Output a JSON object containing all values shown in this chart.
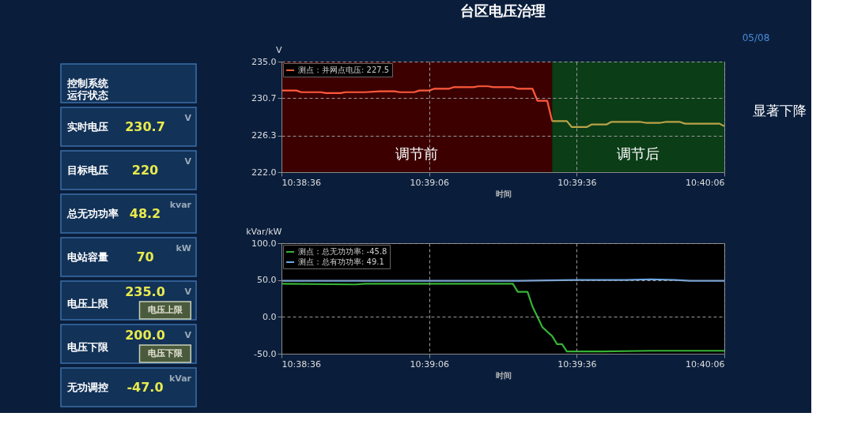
{
  "chart_data": [
    {
      "type": "other",
      "categories": [
        "控制系统运行状态",
        "实时电压",
        "目标电压",
        "总无功功率",
        "电站容量",
        "电压上限",
        "电压下限",
        "无功调控"
      ],
      "value_labels": [
        null,
        "230.7",
        "220",
        "48.2",
        "70",
        "235.0",
        "200.0",
        "-47.0"
      ],
      "annotations": [
        "V",
        "V",
        "kvar",
        "kW",
        "V",
        "V",
        "kVar",
        "电压上限",
        "电压下限"
      ]
    },
    {
      "type": "line",
      "title": "台区电压治理",
      "ylabel": "V",
      "xlabel": "时间",
      "annotations": [
        "显著下降",
        "05/08"
      ],
      "xlim": [
        10.64333,
        10.66833
      ],
      "xticks": [
        {
          "value": 10.64333,
          "label": "10:38:36"
        },
        {
          "value": 10.65167,
          "label": "10:39:06"
        },
        {
          "value": 10.66,
          "label": "10:39:36"
        },
        {
          "value": 10.66833,
          "label": "10:40:06"
        }
      ],
      "ylim": [
        222,
        235
      ],
      "yticks": [
        {
          "value": 222,
          "label": "222.0"
        },
        226.3,
        230.7,
        {
          "value": 235,
          "label": "235.0"
        }
      ],
      "grid": true,
      "legend": "top left",
      "bands": [
        {
          "axis": "x",
          "from": 10.64333,
          "to": 10.65861,
          "label": "调节前",
          "color": "#3c0000"
        },
        {
          "axis": "x",
          "from": 10.65861,
          "to": 10.66833,
          "label": "调节后",
          "color": "#0b3d17"
        }
      ],
      "series": [
        {
          "name": "测点：并网点电压: 227.5",
          "color": "#ff5a3c",
          "x": [
            10.64333,
            10.64417,
            10.64444,
            10.64556,
            10.64583,
            10.64667,
            10.64694,
            10.64778,
            10.64806,
            10.64889,
            10.64972,
            10.65,
            10.65083,
            10.65111,
            10.65167,
            10.65194,
            10.65278,
            10.65306,
            10.65417,
            10.65444,
            10.655,
            10.65528,
            10.65639,
            10.65667,
            10.6575,
            10.65778,
            10.65833,
            10.65861
          ],
          "values": [
            231.6,
            231.6,
            231.4,
            231.4,
            231.3,
            231.3,
            231.4,
            231.4,
            231.4,
            231.5,
            231.5,
            231.4,
            231.4,
            231.6,
            231.6,
            231.8,
            231.8,
            232.0,
            232.0,
            232.1,
            232.1,
            232.0,
            232.0,
            231.8,
            231.8,
            230.4,
            230.4,
            228.0
          ]
        },
        {
          "color": "#b9a247",
          "x": [
            10.65861,
            10.65944,
            10.65972,
            10.66056,
            10.66083,
            10.66167,
            10.66194,
            10.66361,
            10.66389,
            10.66472,
            10.665,
            10.66583,
            10.66611,
            10.66806,
            10.66833
          ],
          "values": [
            228.0,
            228.0,
            227.3,
            227.3,
            227.6,
            227.6,
            227.9,
            227.9,
            227.8,
            227.8,
            227.9,
            227.9,
            227.7,
            227.7,
            227.4
          ]
        }
      ]
    },
    {
      "type": "line",
      "ylabel": "kVar/kW",
      "xlabel": "时间",
      "xlim": [
        10.64333,
        10.66833
      ],
      "xticks": [
        {
          "value": 10.64333,
          "label": "10:38:36"
        },
        {
          "value": 10.65167,
          "label": "10:39:06"
        },
        {
          "value": 10.66,
          "label": "10:39:36"
        },
        {
          "value": 10.66833,
          "label": "10:40:06"
        }
      ],
      "ylim": [
        -50,
        100
      ],
      "yticks": [
        {
          "value": -50,
          "label": "-50.0"
        },
        {
          "value": 0,
          "label": "0.0"
        },
        {
          "value": 50,
          "label": "50.0"
        },
        {
          "value": 100,
          "label": "100.0"
        }
      ],
      "grid": true,
      "legend": "top left",
      "series": [
        {
          "name": "测点：总无功功率: -45.8",
          "color": "#36b336",
          "x": [
            10.64333,
            10.6475,
            10.64806,
            10.65611,
            10.65639,
            10.65667,
            10.65722,
            10.6575,
            10.65778,
            10.65806,
            10.65833,
            10.65861,
            10.65889,
            10.65917,
            10.65944,
            10.66139,
            10.66417,
            10.66694,
            10.66833
          ],
          "values": [
            45,
            44,
            45,
            45,
            45,
            34,
            34,
            14,
            0,
            -14,
            -20,
            -26,
            -37,
            -37,
            -47,
            -47,
            -46,
            -46,
            -46
          ]
        },
        {
          "name": "测点：总有功功率: 49.1",
          "color": "#6fa8e8",
          "x": [
            10.64333,
            10.65611,
            10.65667,
            10.66,
            10.66278,
            10.66417,
            10.66556,
            10.66639,
            10.66833
          ],
          "values": [
            49,
            49,
            49,
            50,
            50,
            51,
            50,
            49,
            49
          ]
        }
      ]
    }
  ]
}
